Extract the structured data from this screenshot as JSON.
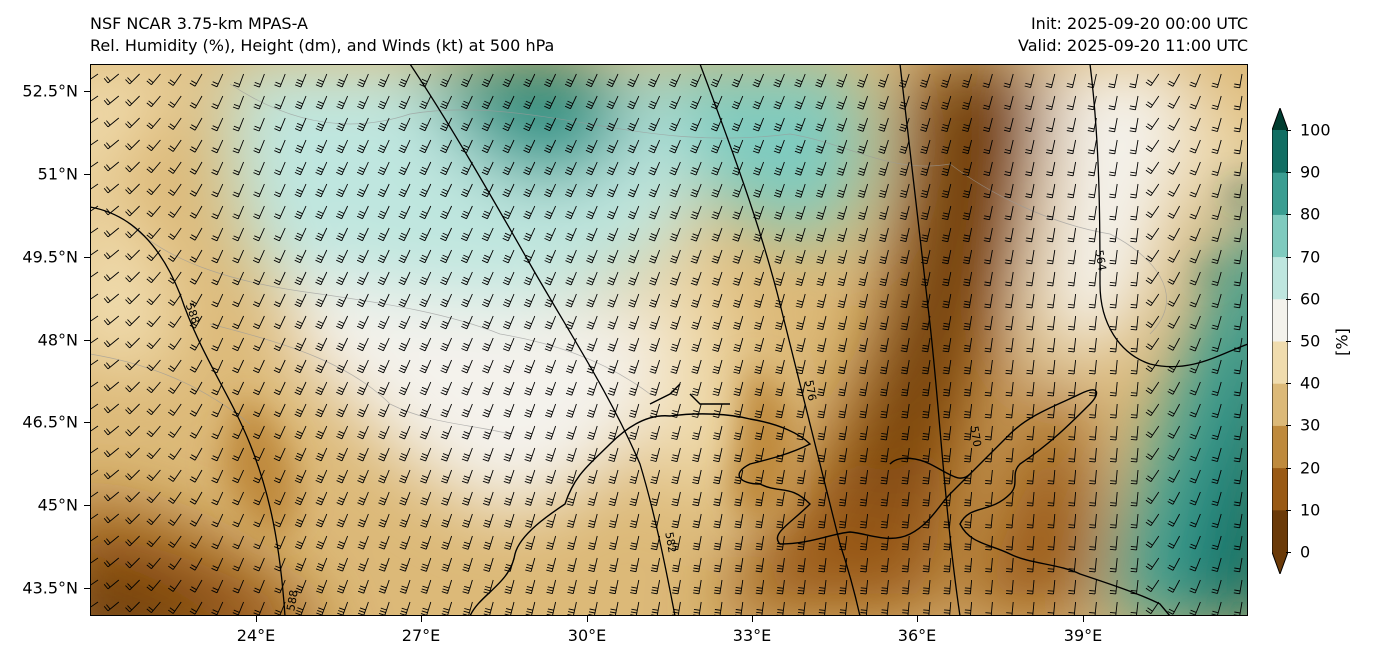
{
  "header": {
    "model": "NSF NCAR 3.75-km MPAS-A",
    "fields": "Rel. Humidity (%), Height (dm), and Winds (kt) at 500 hPa",
    "init": "Init: 2025-09-20 00:00 UTC",
    "valid": "Valid: 2025-09-20 11:00 UTC"
  },
  "axes": {
    "lat_labels": [
      "52.5°N",
      "51°N",
      "49.5°N",
      "48°N",
      "46.5°N",
      "45°N",
      "43.5°N"
    ],
    "lon_labels": [
      "24°E",
      "27°E",
      "30°E",
      "33°E",
      "36°E",
      "39°E"
    ],
    "lat_range": [
      43.0,
      53.0
    ],
    "lon_range": [
      21.0,
      42.0
    ]
  },
  "colorbar": {
    "unit": "[%]",
    "ticks": [
      "0",
      "10",
      "20",
      "30",
      "40",
      "50",
      "60",
      "70",
      "80",
      "90",
      "100"
    ],
    "colors": [
      "#6b3a08",
      "#9a5a14",
      "#bf8a3c",
      "#dcb978",
      "#f0dcae",
      "#f4f2ec",
      "#bfe6df",
      "#7fcbbf",
      "#3a9e92",
      "#106e63",
      "#003c30"
    ]
  },
  "contours": {
    "labels": [
      "588",
      "588",
      "582",
      "576",
      "570",
      "564"
    ],
    "color": "#000000"
  },
  "colors": {
    "coast": "#000000",
    "borders": "#9a9a9a",
    "barbs": "#000000"
  }
}
